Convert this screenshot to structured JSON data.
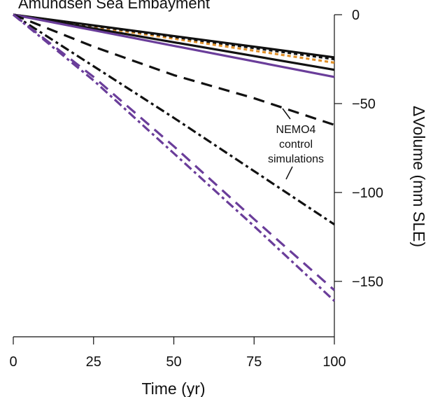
{
  "chart_data": {
    "type": "line",
    "title": "Amundsen Sea Embayment",
    "xlabel": "Time (yr)",
    "ylabel": "ΔVolume (mm SLE)",
    "xlim": [
      0,
      100
    ],
    "ylim": [
      -180,
      0
    ],
    "xticks": [
      0,
      25,
      50,
      75,
      100
    ],
    "xtick_labels": [
      "0",
      "25",
      "50",
      "75",
      "100"
    ],
    "yticks": [
      0,
      -50,
      -100,
      -150
    ],
    "ytick_labels": [
      "0",
      "−50",
      "−100",
      "−150"
    ],
    "y_axis_side": "right",
    "grid": false,
    "legend": "none",
    "annotation": {
      "lines": [
        "NEMO4",
        "control",
        "simulations"
      ],
      "points_to_series": [
        "black-dashed",
        "black-dashdot"
      ]
    },
    "series": [
      {
        "id": "black-solid-a",
        "color": "#111111",
        "style": "solid",
        "x": [
          0,
          100
        ],
        "y": [
          0,
          -24
        ]
      },
      {
        "id": "orange-dotted",
        "color": "#e0902a",
        "style": "dotted",
        "x": [
          0,
          100
        ],
        "y": [
          0,
          -27
        ]
      },
      {
        "id": "black-dotted",
        "color": "#111111",
        "style": "dotted",
        "x": [
          0,
          100
        ],
        "y": [
          0,
          -25
        ]
      },
      {
        "id": "black-solid-b",
        "color": "#111111",
        "style": "solid",
        "x": [
          0,
          100
        ],
        "y": [
          0,
          -31
        ]
      },
      {
        "id": "purple-solid",
        "color": "#6a3d9a",
        "style": "solid",
        "x": [
          0,
          100
        ],
        "y": [
          0,
          -35
        ]
      },
      {
        "id": "black-dashed",
        "color": "#111111",
        "style": "dashed",
        "x": [
          0,
          25,
          50,
          75,
          100
        ],
        "y": [
          0,
          -18,
          -34,
          -47,
          -62
        ]
      },
      {
        "id": "black-dashdot",
        "color": "#111111",
        "style": "dashdot",
        "x": [
          0,
          25,
          50,
          75,
          100
        ],
        "y": [
          0,
          -29,
          -58,
          -88,
          -118
        ]
      },
      {
        "id": "purple-dashed",
        "color": "#6a3d9a",
        "style": "dashed",
        "x": [
          0,
          25,
          50,
          75,
          100
        ],
        "y": [
          0,
          -35,
          -74,
          -115,
          -155
        ]
      },
      {
        "id": "purple-dashdot",
        "color": "#6a3d9a",
        "style": "dashdot",
        "x": [
          0,
          25,
          50,
          75,
          100
        ],
        "y": [
          0,
          -37,
          -78,
          -119,
          -161
        ]
      }
    ]
  }
}
